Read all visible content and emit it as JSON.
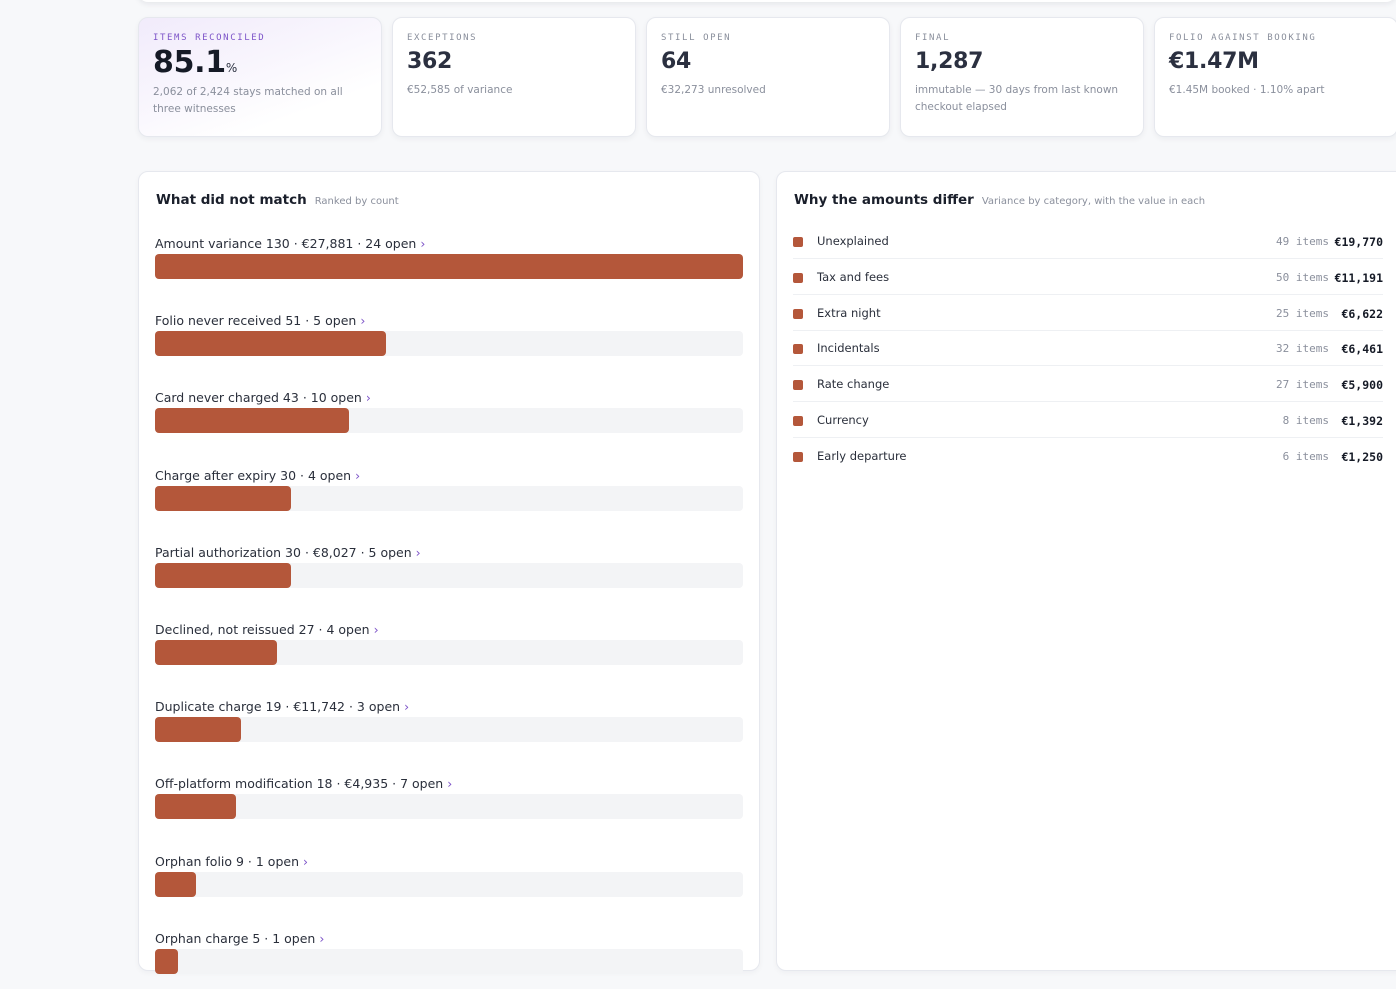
{
  "stats": [
    {
      "label": "ITEMS RECONCILED",
      "value": "85.1",
      "unit": "%",
      "sub": "2,062 of 2,424 stays matched on all three witnesses"
    },
    {
      "label": "EXCEPTIONS",
      "value": "362",
      "sub": "€52,585 of variance"
    },
    {
      "label": "STILL OPEN",
      "value": "64",
      "sub": "€32,273 unresolved"
    },
    {
      "label": "FINAL",
      "value": "1,287",
      "sub": "immutable — 30 days from last known checkout elapsed"
    },
    {
      "label": "FOLIO AGAINST BOOKING",
      "value": "€1.47M",
      "sub": "€1.45M booked · 1.10% apart"
    }
  ],
  "mismatch": {
    "title": "What did not match",
    "subtitle": "Ranked by count",
    "chevron": "›",
    "accent_color": "#b4573a",
    "max_count": 130,
    "rows": [
      {
        "label": "Amount variance 130 · €27,881 · 24 open",
        "count": 130
      },
      {
        "label": "Folio never received 51 · 5 open",
        "count": 51
      },
      {
        "label": "Card never charged 43 · 10 open",
        "count": 43
      },
      {
        "label": "Charge after expiry 30 · 4 open",
        "count": 30
      },
      {
        "label": "Partial authorization 30 · €8,027 · 5 open",
        "count": 30
      },
      {
        "label": "Declined, not reissued 27 · 4 open",
        "count": 27
      },
      {
        "label": "Duplicate charge 19 · €11,742 · 3 open",
        "count": 19
      },
      {
        "label": "Off-platform modification 18 · €4,935 · 7 open",
        "count": 18
      },
      {
        "label": "Orphan folio 9 · 1 open",
        "count": 9
      },
      {
        "label": "Orphan charge 5 · 1 open",
        "count": 5
      }
    ]
  },
  "variance": {
    "title": "Why the amounts differ",
    "subtitle": "Variance by category, with the value in each",
    "swatch_color": "#b4573a",
    "rows": [
      {
        "label": "Unexplained",
        "count": "49 items",
        "value": "€19,770"
      },
      {
        "label": "Tax and fees",
        "count": "50 items",
        "value": "€11,191"
      },
      {
        "label": "Extra night",
        "count": "25 items",
        "value": "€6,622"
      },
      {
        "label": "Incidentals",
        "count": "32 items",
        "value": "€6,461"
      },
      {
        "label": "Rate change",
        "count": "27 items",
        "value": "€5,900"
      },
      {
        "label": "Currency",
        "count": "8 items",
        "value": "€1,392"
      },
      {
        "label": "Early departure",
        "count": "6 items",
        "value": "€1,250"
      }
    ]
  }
}
